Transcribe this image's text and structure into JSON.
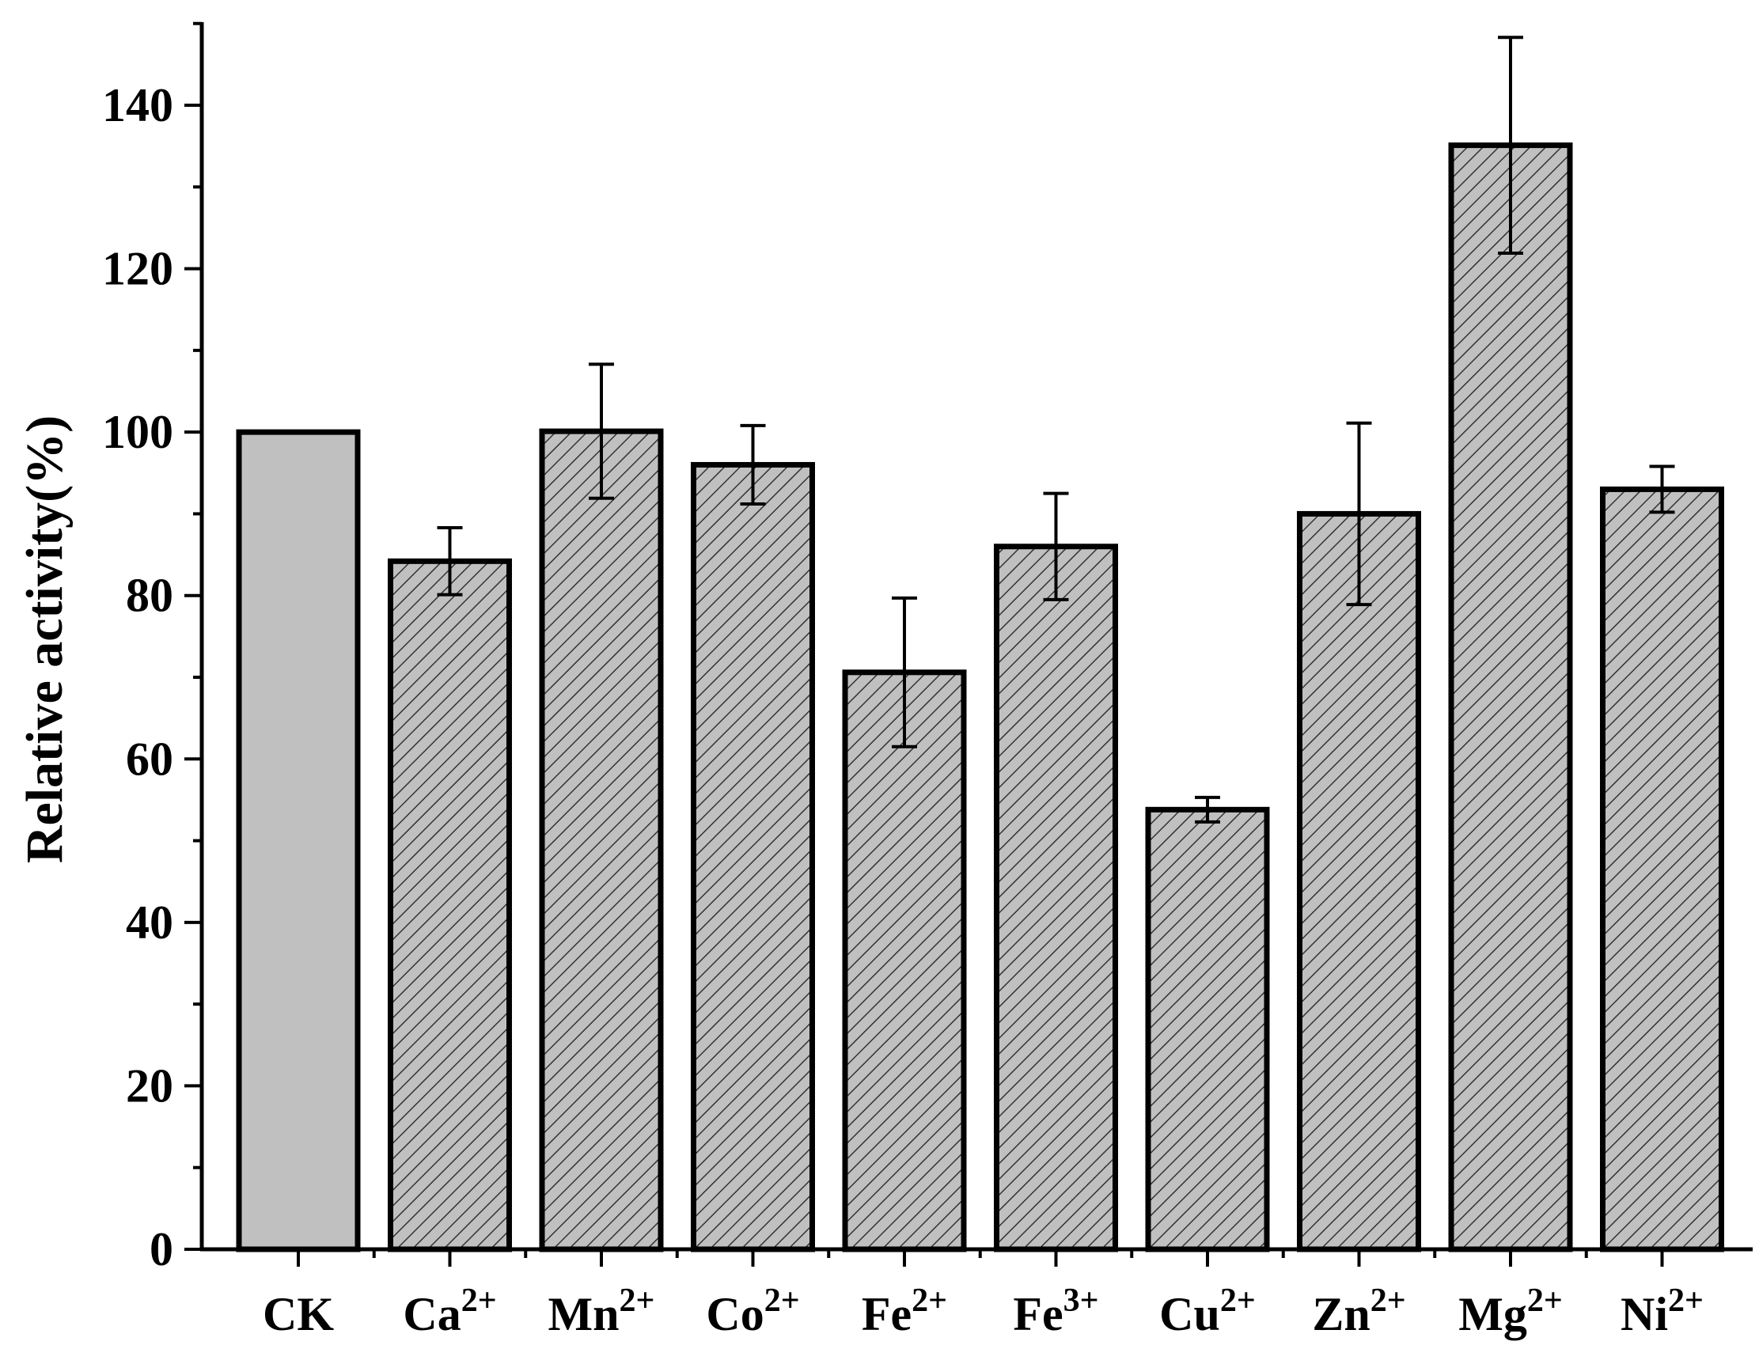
{
  "chart_data": {
    "type": "bar",
    "title": "",
    "xlabel": "",
    "ylabel": "Relative activity(%)",
    "ylim": [
      0,
      150
    ],
    "yticks": [
      0,
      20,
      40,
      60,
      80,
      100,
      120,
      140
    ],
    "grid": false,
    "categories": [
      {
        "base": "CK",
        "sup": ""
      },
      {
        "base": "Ca",
        "sup": "2+"
      },
      {
        "base": "Mn",
        "sup": "2+"
      },
      {
        "base": "Co",
        "sup": "2+"
      },
      {
        "base": "Fe",
        "sup": "2+"
      },
      {
        "base": "Fe",
        "sup": "3+"
      },
      {
        "base": "Cu",
        "sup": "2+"
      },
      {
        "base": "Zn",
        "sup": "2+"
      },
      {
        "base": "Mg",
        "sup": "2+"
      },
      {
        "base": "Ni",
        "sup": "2+"
      }
    ],
    "values": [
      100,
      84.2,
      100.1,
      96,
      70.6,
      86,
      53.8,
      90,
      135.1,
      93
    ],
    "errors": [
      0,
      4.1,
      8.2,
      4.8,
      9.1,
      6.5,
      1.5,
      11.1,
      13.2,
      2.8
    ],
    "fills": [
      "solid",
      "hatched",
      "hatched",
      "hatched",
      "hatched",
      "hatched",
      "hatched",
      "hatched",
      "hatched",
      "hatched"
    ],
    "colors": {
      "bar_fill": "#c0c0c0",
      "hatch_line": "#333333",
      "outline": "#000000"
    }
  }
}
